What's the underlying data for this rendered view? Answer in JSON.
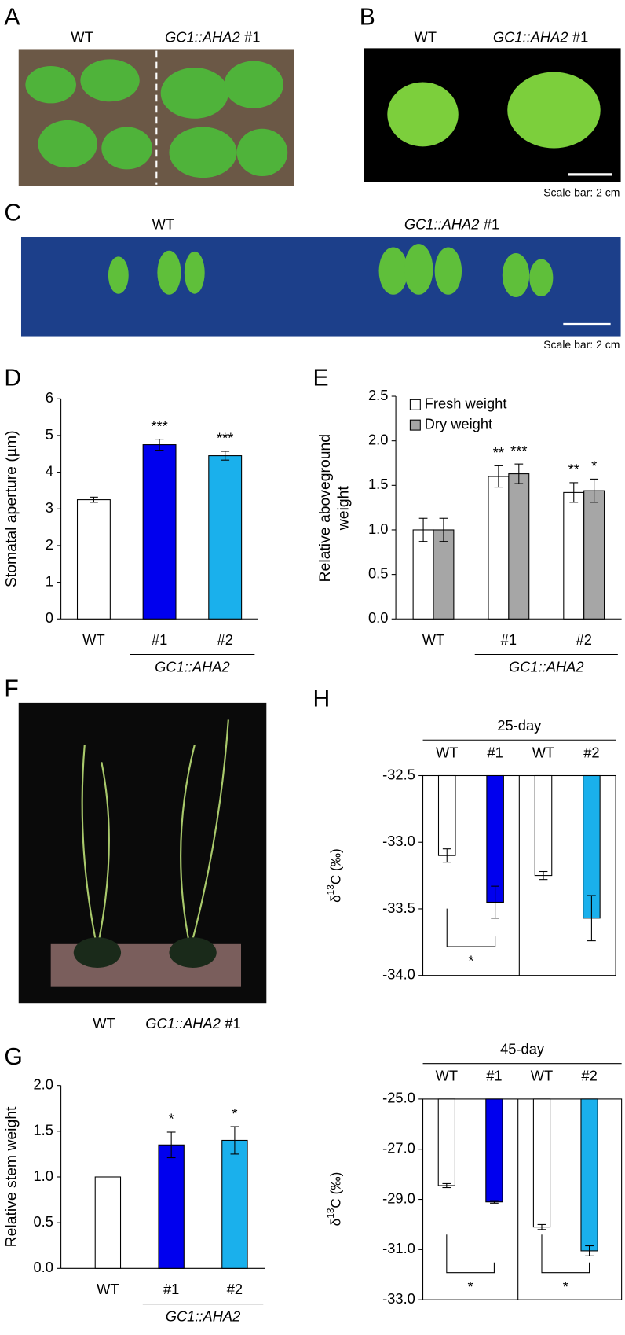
{
  "panel_labels": [
    "A",
    "B",
    "C",
    "D",
    "E",
    "F",
    "G",
    "H"
  ],
  "photos": {
    "A": {
      "left": "WT",
      "right_genotype": "GC1::AHA2",
      "right_line": "#1"
    },
    "B": {
      "left": "WT",
      "right_genotype": "GC1::AHA2",
      "right_line": "#1",
      "scale": "Scale bar: 2 cm"
    },
    "C": {
      "left": "WT",
      "right_genotype": "GC1::AHA2",
      "right_line": "#1",
      "scale": "Scale bar: 2 cm"
    },
    "F": {
      "left": "WT",
      "right_genotype": "GC1::AHA2",
      "right_line": "#1"
    }
  },
  "chart_data": [
    {
      "type": "bar",
      "ylabel": "Stomatal aperture (µm)",
      "categories": [
        "WT",
        "#1",
        "#2"
      ],
      "group_label": "GC1::AHA2",
      "values": [
        3.25,
        4.75,
        4.45
      ],
      "errors": [
        0.07,
        0.15,
        0.12
      ],
      "significance": [
        null,
        "***",
        "***"
      ],
      "colors": [
        "#ffffff",
        "#0000ee",
        "#1ab0ec"
      ],
      "ylim": [
        0,
        6
      ],
      "yticks": [
        0,
        1,
        2,
        3,
        4,
        5,
        6
      ]
    },
    {
      "type": "bar",
      "ylabel": [
        "Relative aboveground",
        "weight"
      ],
      "categories": [
        "WT",
        "#1",
        "#2"
      ],
      "group_label": "GC1::AHA2",
      "series": [
        {
          "name": "Fresh weight",
          "color": "#ffffff",
          "values": [
            1.0,
            1.6,
            1.42
          ],
          "errors": [
            0.13,
            0.12,
            0.11
          ],
          "significance": [
            null,
            "**",
            "**"
          ]
        },
        {
          "name": "Dry weight",
          "color": "#a6a6a6",
          "values": [
            1.0,
            1.63,
            1.44
          ],
          "errors": [
            0.13,
            0.11,
            0.13
          ],
          "significance": [
            null,
            "***",
            "*"
          ]
        }
      ],
      "legend": "upper left",
      "ylim": [
        0,
        2.5
      ],
      "yticks": [
        {
          "value": 0,
          "label": "0.0"
        },
        0.5,
        {
          "value": 1,
          "label": "1.0"
        },
        1.5,
        {
          "value": 2,
          "label": "2.0"
        },
        2.5
      ]
    },
    {
      "type": "bar",
      "ylabel": "Relative  stem weight",
      "categories": [
        "WT",
        "#1",
        "#2"
      ],
      "group_label": "GC1::AHA2",
      "values": [
        1.0,
        1.35,
        1.4
      ],
      "errors": [
        null,
        0.14,
        0.15
      ],
      "significance": [
        null,
        "*",
        "*"
      ],
      "colors": [
        "#ffffff",
        "#0000ee",
        "#1ab0ec"
      ],
      "ylim": [
        0,
        2
      ],
      "yticks": [
        {
          "value": 0,
          "label": "0.0"
        },
        0.5,
        {
          "value": 1,
          "label": "1.0"
        },
        1.5,
        {
          "value": 2,
          "label": "2.0"
        }
      ]
    },
    {
      "type": "bar",
      "header": "25-day",
      "xaxis_position": "top",
      "frame": true,
      "divider": true,
      "ylabel": {
        "prefix": "δ",
        "sup": "13",
        "suffix": "C (‰)"
      },
      "categories": [
        "WT",
        "#1",
        "WT",
        "#2"
      ],
      "values": [
        -33.1,
        -33.45,
        -33.25,
        -33.57
      ],
      "errors": [
        0.05,
        0.12,
        0.03,
        0.17
      ],
      "colors": [
        "#ffffff",
        "#0000ee",
        "#ffffff",
        "#1ab0ec"
      ],
      "comparisons": [
        {
          "pair": [
            0,
            1
          ],
          "label": "*"
        }
      ],
      "ylim": [
        -34,
        -32.5
      ],
      "yticks": [
        -32.5,
        {
          "value": -33,
          "label": "-33.0"
        },
        -33.5,
        {
          "value": -34,
          "label": "-34.0"
        }
      ]
    },
    {
      "type": "bar",
      "header": "45-day",
      "xaxis_position": "top",
      "frame": true,
      "divider": true,
      "ylabel": {
        "prefix": "δ",
        "sup": "13",
        "suffix": "C (‰)"
      },
      "categories": [
        "WT",
        "#1",
        "WT",
        "#2"
      ],
      "values": [
        -28.45,
        -29.1,
        -30.1,
        -31.05
      ],
      "errors": [
        0.08,
        0.05,
        0.1,
        0.2
      ],
      "colors": [
        "#ffffff",
        "#0000ee",
        "#ffffff",
        "#1ab0ec"
      ],
      "comparisons": [
        {
          "pair": [
            0,
            1
          ],
          "label": "*"
        },
        {
          "pair": [
            2,
            3
          ],
          "label": "*"
        }
      ],
      "ylim": [
        -33,
        -25
      ],
      "yticks": [
        {
          "value": -25,
          "label": "-25.0"
        },
        {
          "value": -27,
          "label": "-27.0"
        },
        {
          "value": -29,
          "label": "-29.0"
        },
        {
          "value": -31,
          "label": "-31.0"
        },
        {
          "value": -33,
          "label": "-33.0"
        }
      ]
    }
  ]
}
